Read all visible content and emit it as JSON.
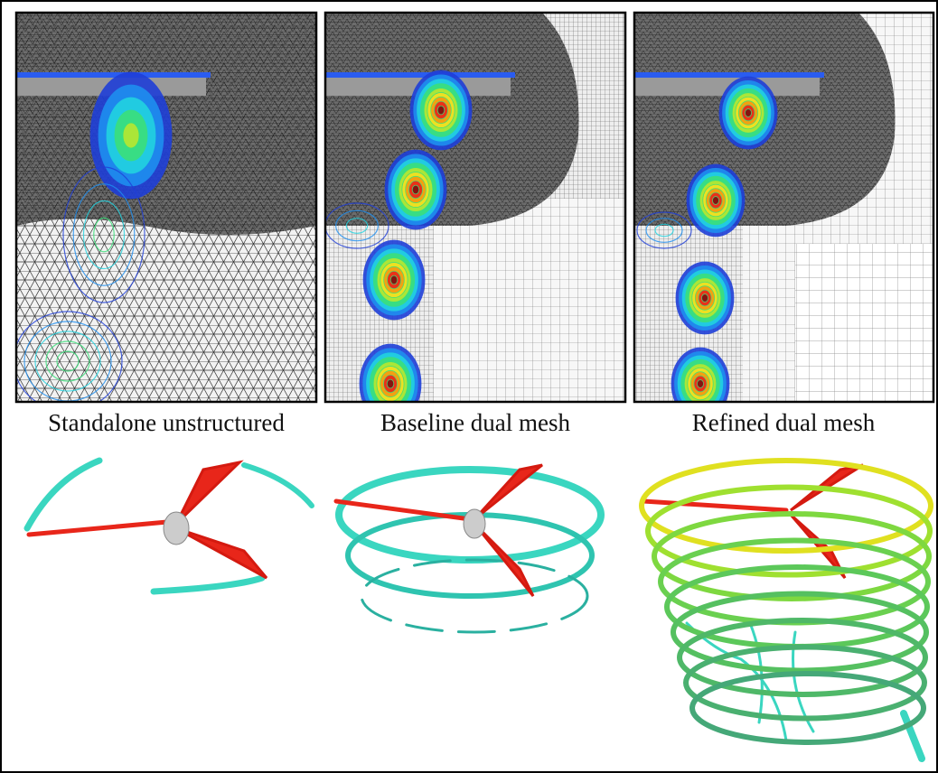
{
  "panels": [
    {
      "caption": "Standalone unstructured"
    },
    {
      "caption": "Baseline dual mesh"
    },
    {
      "caption": "Refined dual mesh"
    }
  ]
}
